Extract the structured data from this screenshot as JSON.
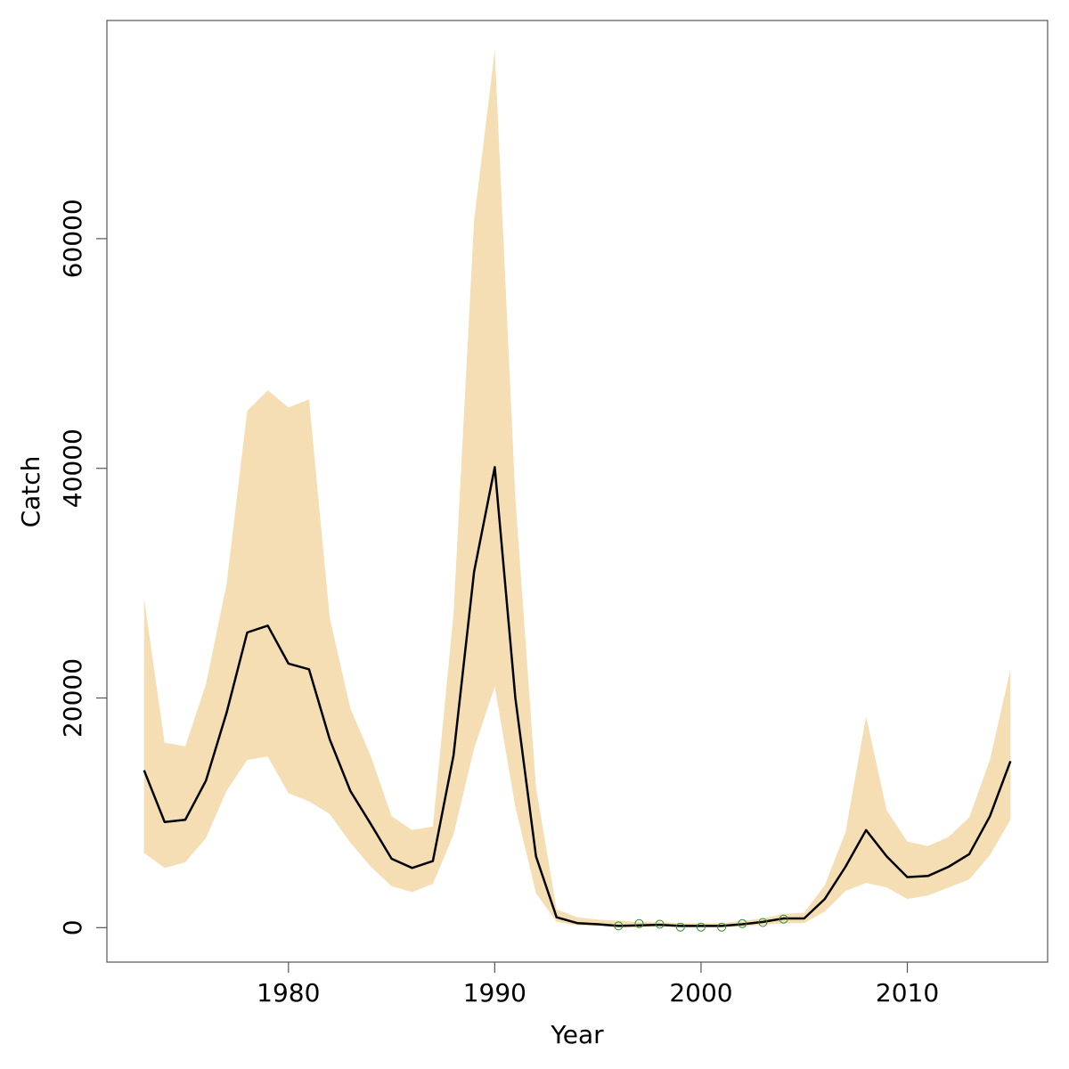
{
  "chart_data": {
    "type": "line",
    "title": "",
    "xlabel": "Year",
    "ylabel": "Catch",
    "xlim": [
      1971.2,
      1916.8
    ],
    "ylim": [
      -3000,
      79000
    ],
    "xticks": [
      1980,
      1990,
      2000,
      2010
    ],
    "yticks": [
      0,
      20000,
      40000,
      60000
    ],
    "grid": false,
    "legend": "none",
    "colors": {
      "band": "#F5DEB3",
      "line": "#000000",
      "points": "#2E8B2E"
    },
    "years": [
      1973,
      1974,
      1975,
      1976,
      1977,
      1978,
      1979,
      1980,
      1981,
      1982,
      1983,
      1984,
      1985,
      1986,
      1987,
      1988,
      1989,
      1990,
      1991,
      1992,
      1993,
      1994,
      1995,
      1996,
      1997,
      1998,
      1999,
      2000,
      2001,
      2002,
      2003,
      2004,
      2005,
      2006,
      2007,
      2008,
      2009,
      2010,
      2011,
      2012,
      2013,
      2014,
      2015
    ],
    "series": [
      {
        "role": "median",
        "values": [
          13700,
          9200,
          9400,
          12800,
          18700,
          25700,
          26300,
          23000,
          22500,
          16400,
          11900,
          9000,
          6000,
          5200,
          5800,
          15000,
          31000,
          40100,
          20000,
          6200,
          900,
          400,
          300,
          150,
          200,
          250,
          150,
          150,
          150,
          300,
          500,
          800,
          800,
          2500,
          5300,
          8500,
          6200,
          4400,
          4500,
          5300,
          6400,
          9700,
          14500
        ]
      },
      {
        "role": "upper",
        "values": [
          28700,
          16100,
          15800,
          21200,
          29900,
          45000,
          46800,
          45300,
          46000,
          27000,
          19100,
          14900,
          9700,
          8500,
          8800,
          27300,
          61600,
          76400,
          37400,
          12200,
          1600,
          900,
          700,
          600,
          500,
          500,
          400,
          400,
          400,
          600,
          800,
          1200,
          1300,
          3700,
          8300,
          18400,
          10200,
          7500,
          7100,
          7900,
          9600,
          14600,
          22500
        ]
      },
      {
        "role": "lower",
        "values": [
          6500,
          5200,
          5700,
          7800,
          11900,
          14600,
          14900,
          11700,
          11000,
          9900,
          7400,
          5300,
          3600,
          3100,
          3800,
          8100,
          15600,
          21000,
          10500,
          3000,
          500,
          200,
          150,
          50,
          50,
          100,
          50,
          50,
          50,
          100,
          250,
          400,
          400,
          1400,
          3200,
          3900,
          3500,
          2500,
          2800,
          3500,
          4200,
          6300,
          9400
        ]
      }
    ],
    "points": {
      "years": [
        1996,
        1997,
        1998,
        1999,
        2000,
        2001,
        2002,
        2003,
        2004
      ],
      "values": [
        150,
        350,
        300,
        50,
        50,
        50,
        350,
        450,
        750
      ]
    }
  }
}
